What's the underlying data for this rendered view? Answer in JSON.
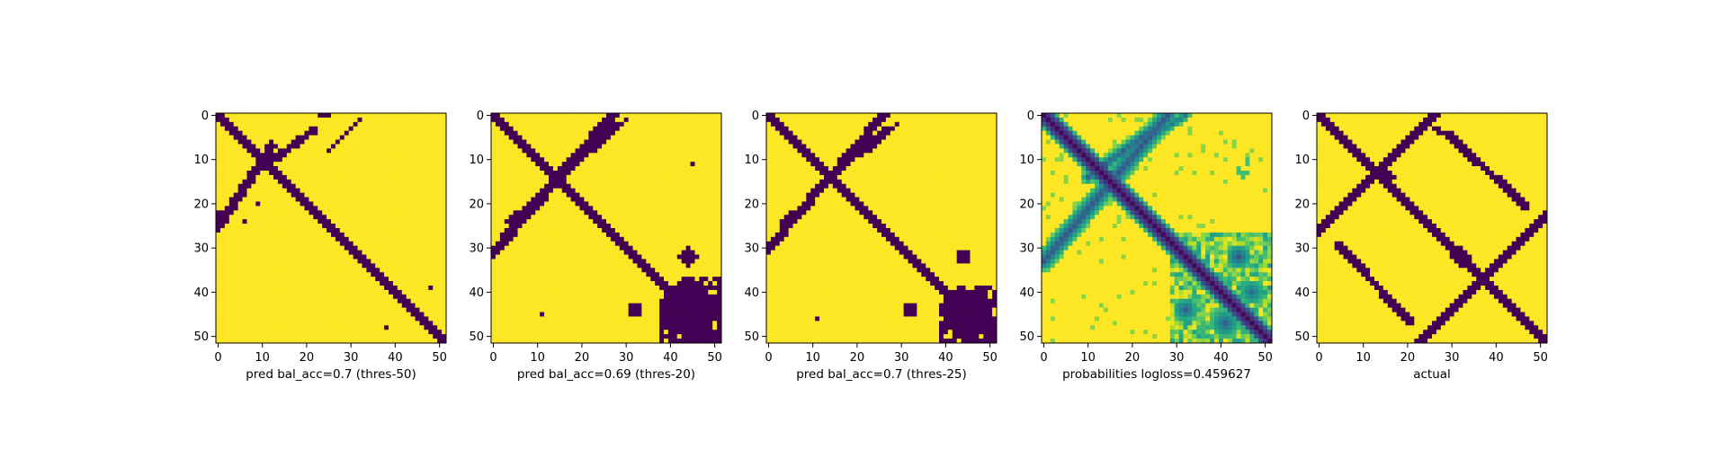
{
  "chart_data": [
    {
      "type": "heatmap",
      "colormap": "viridis",
      "grid_size": 52,
      "xlabel": "pred bal_acc=0.7 (thres-50)",
      "xticks": [
        0,
        10,
        20,
        30,
        40,
        50
      ],
      "yticks": [
        0,
        10,
        20,
        30,
        40,
        50
      ],
      "xlim": [
        0,
        51
      ],
      "ylim": [
        51,
        0
      ],
      "values": "binary mask: main diagonal band (width ~3) from (0,0) to (51,51); anti-diagonal segment from (1,24) to (12,7); short arm from rows 0-8 near columns 23-32; small specks near (40,48) and (48,38)",
      "data_key": "a"
    },
    {
      "type": "heatmap",
      "colormap": "viridis",
      "grid_size": 52,
      "xlabel": "pred bal_acc=0.69 (thres-20)",
      "xticks": [
        0,
        10,
        20,
        30,
        40,
        50
      ],
      "yticks": [
        0,
        10,
        20,
        30,
        40,
        50
      ],
      "xlim": [
        0,
        51
      ],
      "ylim": [
        51,
        0
      ],
      "values": "binary mask: thick main diagonal band; anti-diagonal from (0,31) to (27,0); blobs at (32,44), (44,32), large blob around (40-51,36-51); speck at (11,45)",
      "data_key": "b"
    },
    {
      "type": "heatmap",
      "colormap": "viridis",
      "grid_size": 52,
      "xlabel": "pred bal_acc=0.7 (thres-25)",
      "xticks": [
        0,
        10,
        20,
        30,
        40,
        50
      ],
      "yticks": [
        0,
        10,
        20,
        30,
        40,
        50
      ],
      "xlim": [
        0,
        51
      ],
      "ylim": [
        51,
        0
      ],
      "values": "binary mask: main diagonal band; anti-diagonal from (0,30) to (26,0); blobs at (32,44), (44,32), large blob around (42-51,37-51); speck at (46,11)",
      "data_key": "c"
    },
    {
      "type": "heatmap",
      "colormap": "viridis",
      "grid_size": 52,
      "xlabel": "probabilities logloss=0.459627",
      "xticks": [
        0,
        10,
        20,
        30,
        40,
        50
      ],
      "yticks": [
        0,
        10,
        20,
        30,
        40,
        50
      ],
      "xlim": [
        0,
        51
      ],
      "ylim": [
        51,
        0
      ],
      "values": "continuous probability map: strong low-value main diagonal; weaker anti-diagonals near top-left; diffuse low values in bottom-right region",
      "data_key": "d"
    },
    {
      "type": "heatmap",
      "colormap": "viridis",
      "grid_size": 52,
      "xlabel": "actual",
      "xticks": [
        0,
        10,
        20,
        30,
        40,
        50
      ],
      "yticks": [
        0,
        10,
        20,
        30,
        40,
        50
      ],
      "xlim": [
        0,
        51
      ],
      "ylim": [
        51,
        0
      ],
      "values": "binary mask: two crossing X patterns — main diagonal band, anti-diagonal from (0,26) to (26,0) crossing at (15,13), second anti-diagonal from (52,22) to (22,52) crossing at (32,32)",
      "data_key": "e"
    }
  ]
}
